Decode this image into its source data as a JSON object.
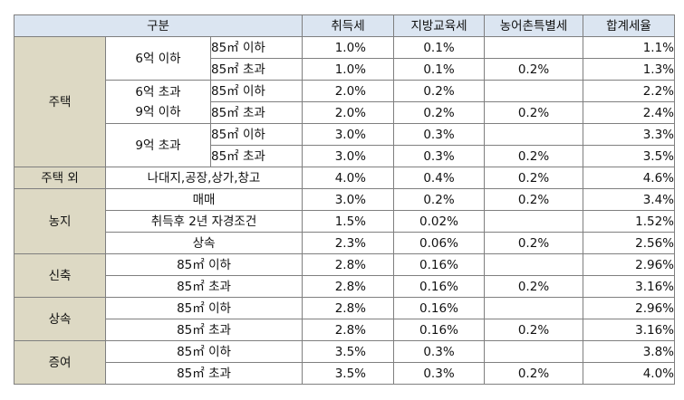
{
  "header": {
    "category": "구분",
    "acquisition_tax": "취득세",
    "local_education_tax": "지방교육세",
    "rural_special_tax": "농어촌특별세",
    "total_rate": "합계세율"
  },
  "groups": {
    "housing": "주택",
    "non_housing": "주택 외",
    "farmland": "농지",
    "new_build": "신축",
    "inheritance": "상속",
    "gift": "증여"
  },
  "price_bands": {
    "under_6": "6억 이하",
    "over_6_line1": "6억 초과",
    "over_6_line2": "9억 이하",
    "over_9": "9억 초과"
  },
  "rows": [
    {
      "size": "85㎡ 이하",
      "acq": "1.0%",
      "edu": "0.1%",
      "rural": "",
      "total": "1.1%"
    },
    {
      "size": "85㎡ 초과",
      "acq": "1.0%",
      "edu": "0.1%",
      "rural": "0.2%",
      "total": "1.3%"
    },
    {
      "size": "85㎡ 이하",
      "acq": "2.0%",
      "edu": "0.2%",
      "rural": "",
      "total": "2.2%"
    },
    {
      "size": "85㎡ 초과",
      "acq": "2.0%",
      "edu": "0.2%",
      "rural": "0.2%",
      "total": "2.4%"
    },
    {
      "size": "85㎡ 이하",
      "acq": "3.0%",
      "edu": "0.3%",
      "rural": "",
      "total": "3.3%"
    },
    {
      "size": "85㎡ 초과",
      "acq": "3.0%",
      "edu": "0.3%",
      "rural": "0.2%",
      "total": "3.5%"
    },
    {
      "size": "나대지,공장,상가,창고",
      "acq": "4.0%",
      "edu": "0.4%",
      "rural": "0.2%",
      "total": "4.6%"
    },
    {
      "size": "매매",
      "acq": "3.0%",
      "edu": "0.2%",
      "rural": "0.2%",
      "total": "3.4%"
    },
    {
      "size": "취득후 2년 자경조건",
      "acq": "1.5%",
      "edu": "0.02%",
      "rural": "",
      "total": "1.52%"
    },
    {
      "size": "상속",
      "acq": "2.3%",
      "edu": "0.06%",
      "rural": "0.2%",
      "total": "2.56%"
    },
    {
      "size": "85㎡ 이하",
      "acq": "2.8%",
      "edu": "0.16%",
      "rural": "",
      "total": "2.96%"
    },
    {
      "size": "85㎡ 초과",
      "acq": "2.8%",
      "edu": "0.16%",
      "rural": "0.2%",
      "total": "3.16%"
    },
    {
      "size": "85㎡ 이하",
      "acq": "2.8%",
      "edu": "0.16%",
      "rural": "",
      "total": "2.96%"
    },
    {
      "size": "85㎡ 초과",
      "acq": "2.8%",
      "edu": "0.16%",
      "rural": "0.2%",
      "total": "3.16%"
    },
    {
      "size": "85㎡ 이하",
      "acq": "3.5%",
      "edu": "0.3%",
      "rural": "",
      "total": "3.8%"
    },
    {
      "size": "85㎡ 초과",
      "acq": "3.5%",
      "edu": "0.3%",
      "rural": "0.2%",
      "total": "4.0%"
    }
  ],
  "colors": {
    "header_bg": "#dbe5f1",
    "category_bg": "#ddd9c4",
    "border": "#7f7f7f"
  }
}
